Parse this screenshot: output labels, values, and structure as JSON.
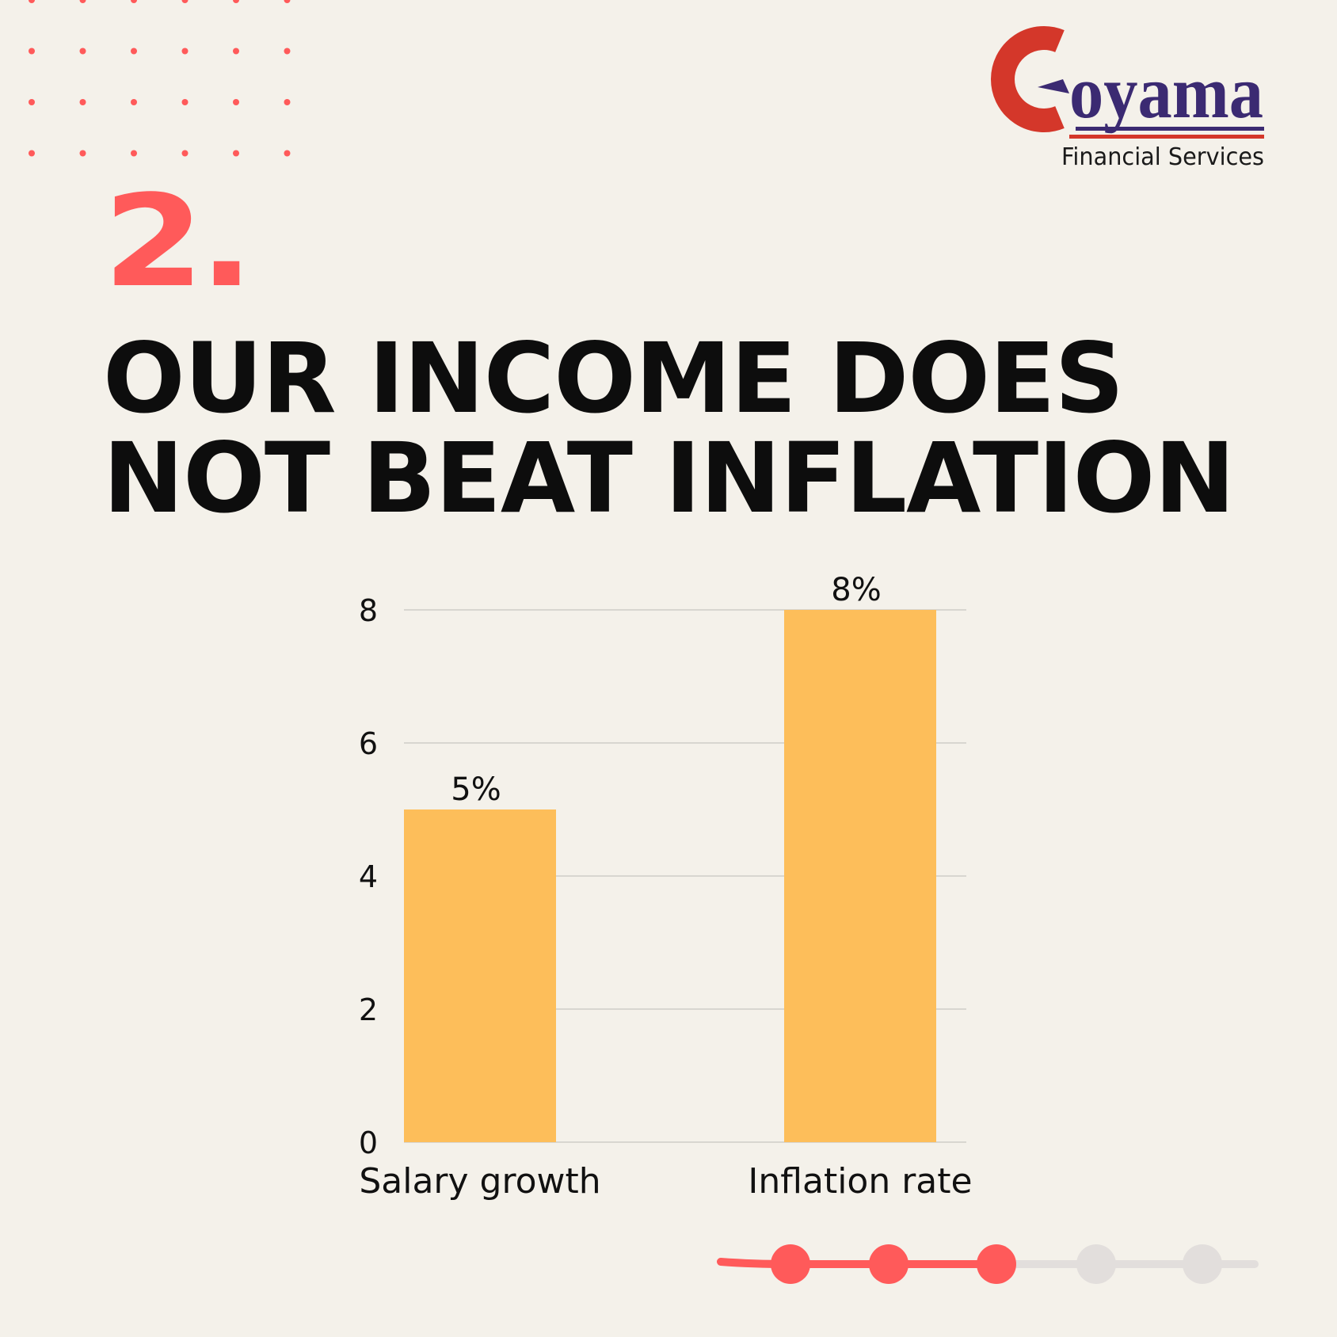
{
  "brand": {
    "name": "Goyama",
    "tagline": "Financial Services",
    "colors": {
      "red": "#d4372a",
      "purple": "#3b2a72"
    }
  },
  "slide": {
    "number": "2.",
    "headline_lines": [
      "OUR INCOME DOES",
      "NOT BEAT INFLATION"
    ],
    "accent_color": "#ff5a5a"
  },
  "chart_data": {
    "type": "bar",
    "categories": [
      "Salary growth",
      "Inflation rate"
    ],
    "values": [
      5,
      8
    ],
    "data_labels": [
      "5%",
      "8%"
    ],
    "ylim": [
      0,
      8
    ],
    "yticks": [
      0,
      2,
      4,
      6,
      8
    ],
    "grid": true,
    "bar_color": "#fdbe5a",
    "grid_color": "#cfcdc7"
  },
  "pager": {
    "total": 5,
    "current": 3,
    "active_color": "#ff5a5a",
    "inactive_color": "#e2dedc"
  }
}
